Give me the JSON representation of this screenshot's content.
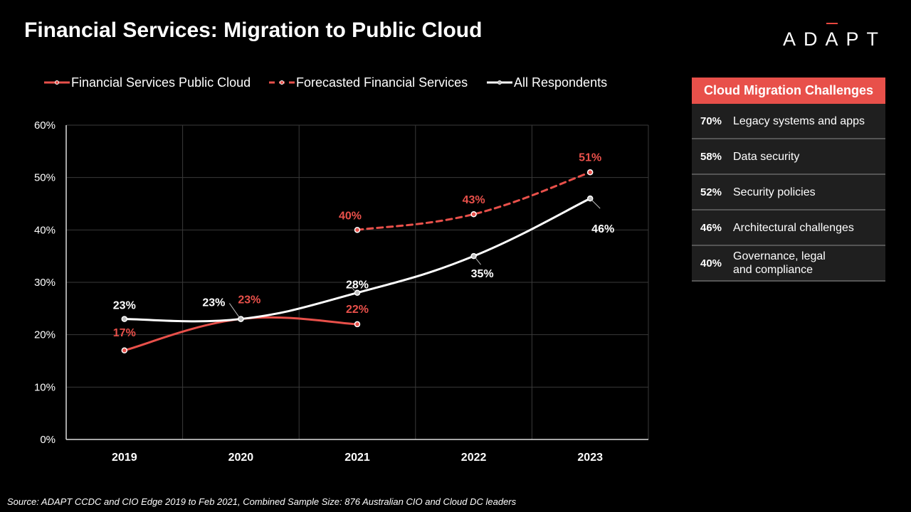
{
  "title": "Financial Services: Migration to Public Cloud",
  "logo": {
    "l1": "AD",
    "l2": "A",
    "l3": "PT"
  },
  "colors": {
    "red": "#e8504a",
    "white": "#ffffff",
    "grid": "#3a3a3a"
  },
  "chart_data": {
    "type": "line",
    "categories": [
      "2019",
      "2020",
      "2021",
      "2022",
      "2023"
    ],
    "ylim": [
      0,
      60
    ],
    "yticks": [
      "0%",
      "10%",
      "20%",
      "30%",
      "40%",
      "50%",
      "60%"
    ],
    "grid": true,
    "legend_position": "top",
    "series": [
      {
        "name": "Financial Services Public Cloud",
        "style": "solid",
        "color": "#e8504a",
        "values": [
          17,
          23,
          22,
          null,
          null
        ],
        "labels": [
          "17%",
          "23%",
          "22%",
          "",
          ""
        ]
      },
      {
        "name": "Forecasted Financial Services",
        "style": "dashed",
        "color": "#e8504a",
        "values": [
          null,
          null,
          40,
          43,
          51
        ],
        "labels": [
          "",
          "",
          "40%",
          "43%",
          "51%"
        ]
      },
      {
        "name": "All Respondents",
        "style": "solid",
        "color": "#ffffff",
        "values": [
          23,
          23,
          28,
          35,
          46
        ],
        "labels": [
          "23%",
          "23%",
          "28%",
          "35%",
          "46%"
        ]
      }
    ]
  },
  "panel": {
    "title": "Cloud Migration Challenges",
    "items": [
      {
        "pct": "70%",
        "label": "Legacy systems and apps"
      },
      {
        "pct": "58%",
        "label": "Data security"
      },
      {
        "pct": "52%",
        "label": "Security policies"
      },
      {
        "pct": "46%",
        "label": "Architectural challenges"
      },
      {
        "pct": "40%",
        "label": "Governance, legal and compliance"
      }
    ]
  },
  "source": "Source: ADAPT CCDC and CIO Edge 2019 to Feb 2021, Combined Sample Size: 876 Australian CIO and Cloud DC leaders"
}
